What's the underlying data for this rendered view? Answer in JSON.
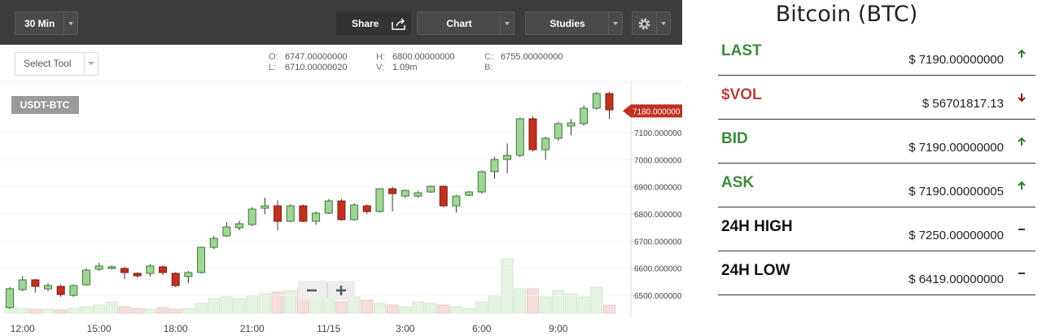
{
  "ui": {
    "toolbar": {
      "interval": "30 Min",
      "share": "Share",
      "chart": "Chart",
      "studies": "Studies",
      "select_tool": "Select Tool"
    },
    "ohlc": [
      {
        "label": "O:",
        "value": "6747.00000000"
      },
      {
        "label": "H:",
        "value": "6800.00000000"
      },
      {
        "label": "C:",
        "value": "6755.00000000"
      },
      {
        "label": "L:",
        "value": "6710.00000020"
      },
      {
        "label": "V:",
        "value": "1.09m"
      },
      {
        "label": "B:"
      }
    ],
    "symbol": "USDT-BTC",
    "sidebar": {
      "title": "Bitcoin (BTC)",
      "rows": [
        {
          "label": "LAST",
          "value": "$ 7190.00000000",
          "trend": "up",
          "color": "#3c8a3c"
        },
        {
          "label": "$VOL",
          "value": "$ 56701817.13",
          "trend": "down",
          "color": "#b94040"
        },
        {
          "label": "BID",
          "value": "$ 7190.00000000",
          "trend": "up",
          "color": "#3c8a3c"
        },
        {
          "label": "ASK",
          "value": "$ 7190.00000005",
          "trend": "up",
          "color": "#3c8a3c"
        },
        {
          "label": "24H HIGH",
          "value": "$ 7250.00000000",
          "trend": "flat",
          "color": "#111111"
        },
        {
          "label": "24H LOW",
          "value": "$ 6419.00000000",
          "trend": "flat",
          "color": "#111111"
        }
      ]
    }
  },
  "chart_data": {
    "type": "candlestick",
    "categories": [
      null,
      "12:00",
      null,
      null,
      null,
      null,
      null,
      "15:00",
      null,
      null,
      null,
      null,
      null,
      "18:00",
      null,
      null,
      null,
      null,
      null,
      "21:00",
      null,
      null,
      null,
      null,
      null,
      "11/15",
      null,
      null,
      null,
      null,
      null,
      "3:00",
      null,
      null,
      null,
      null,
      null,
      "6:00",
      null,
      null,
      null,
      null,
      null,
      "9:00",
      null,
      null,
      null,
      null
    ],
    "open": [
      6455,
      6521,
      6557,
      6524,
      6533,
      6500,
      6539,
      6596,
      6599,
      6599,
      6581,
      6581,
      6605,
      6581,
      6569,
      6584,
      6677,
      6719,
      6749,
      6761,
      6821,
      6830,
      6773,
      6830,
      6773,
      6803,
      6848,
      6779,
      6830,
      6809,
      6893,
      6866,
      6866,
      6881,
      6902,
      6830,
      6869,
      6881,
      6956,
      7001,
      7016,
      7151,
      7037,
      7079,
      7124,
      7133,
      7190,
      7244
    ],
    "high": [
      6530,
      6570,
      6560,
      6545,
      6540,
      6540,
      6600,
      6620,
      6610,
      6605,
      6585,
      6615,
      6610,
      6585,
      6590,
      6680,
      6720,
      6770,
      6775,
      6825,
      6860,
      6850,
      6835,
      6835,
      6810,
      6855,
      6855,
      6840,
      6835,
      6895,
      6900,
      6890,
      6885,
      6905,
      6905,
      6870,
      6885,
      6960,
      7010,
      7060,
      7155,
      7160,
      7085,
      7140,
      7150,
      7200,
      7250,
      7250
    ],
    "low": [
      6450,
      6515,
      6510,
      6515,
      6495,
      6495,
      6535,
      6590,
      6595,
      6560,
      6565,
      6570,
      6575,
      6530,
      6545,
      6580,
      6670,
      6715,
      6740,
      6755,
      6800,
      6740,
      6770,
      6770,
      6760,
      6800,
      6775,
      6775,
      6800,
      6805,
      6810,
      6860,
      6860,
      6878,
      6825,
      6805,
      6865,
      6875,
      6930,
      6950,
      7010,
      7030,
      7000,
      7070,
      7090,
      7125,
      7185,
      7150
    ],
    "close": [
      6524,
      6557,
      6533,
      6536,
      6503,
      6536,
      6593,
      6608,
      6605,
      6584,
      6572,
      6608,
      6584,
      6536,
      6584,
      6677,
      6710,
      6752,
      6764,
      6818,
      6830,
      6773,
      6830,
      6773,
      6803,
      6848,
      6779,
      6833,
      6809,
      6893,
      6875,
      6887,
      6878,
      6902,
      6830,
      6866,
      6881,
      6956,
      7001,
      7016,
      7151,
      7037,
      7079,
      7133,
      7136,
      7190,
      7244,
      7184
    ],
    "volumes": [
      8,
      6,
      5,
      5,
      4,
      6,
      8,
      10,
      14,
      8,
      6,
      5,
      7,
      5,
      6,
      12,
      18,
      20,
      18,
      22,
      24,
      26,
      28,
      30,
      22,
      18,
      14,
      20,
      16,
      12,
      10,
      8,
      14,
      12,
      10,
      8,
      6,
      14,
      22,
      67,
      30,
      30,
      20,
      28,
      24,
      20,
      32,
      10
    ],
    "up_color": "#9fd595",
    "down_color": "#c0311f",
    "ylim": [
      6434,
      7289
    ],
    "yticks": [
      {
        "value": 6500,
        "label": "6500.000000"
      },
      {
        "value": 6600,
        "label": "6600.000000"
      },
      {
        "value": 6700,
        "label": "6700.000000"
      },
      {
        "value": 6800,
        "label": "6800.000000"
      },
      {
        "value": 6900,
        "label": "6900.000000"
      },
      {
        "value": 7000,
        "label": "7000.000000"
      },
      {
        "value": 7100,
        "label": "7100.000000"
      }
    ],
    "last_price": {
      "value": 7180,
      "label": "7180.000000"
    },
    "grid": true
  }
}
